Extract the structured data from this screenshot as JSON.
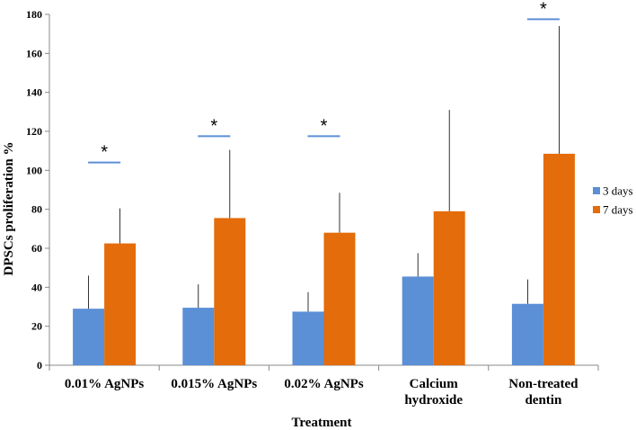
{
  "chart_data": {
    "type": "bar",
    "title": "",
    "xlabel": "Treatment",
    "ylabel": "DPSCs proliferation %",
    "ylim": [
      0,
      180
    ],
    "yticks": [
      "0",
      "20",
      "40",
      "60",
      "80",
      "100",
      "120",
      "140",
      "160",
      "180"
    ],
    "categories": [
      [
        "0.01% AgNPs"
      ],
      [
        "0.015% AgNPs"
      ],
      [
        "0.02% AgNPs"
      ],
      [
        "Calcium",
        "hydroxide"
      ],
      [
        "Non-treated",
        "dentin"
      ]
    ],
    "series": [
      {
        "name": "3 days",
        "color": "#5b8fd6",
        "values": [
          29,
          29.5,
          27.5,
          45.5,
          31.5
        ],
        "errors": [
          17,
          12,
          10,
          12,
          12.5
        ]
      },
      {
        "name": "7 days",
        "color": "#e46c0a",
        "values": [
          62.5,
          75.5,
          68,
          79,
          108.5
        ],
        "errors": [
          18,
          35,
          20.5,
          52,
          65.5
        ]
      }
    ],
    "significance": [
      {
        "category_index": 0,
        "label": "*",
        "y": 104
      },
      {
        "category_index": 1,
        "label": "*",
        "y": 117.5
      },
      {
        "category_index": 2,
        "label": "*",
        "y": 117.5
      },
      {
        "category_index": 4,
        "label": "*",
        "y": 177.5
      }
    ],
    "legend_position": "right",
    "grid": false
  }
}
